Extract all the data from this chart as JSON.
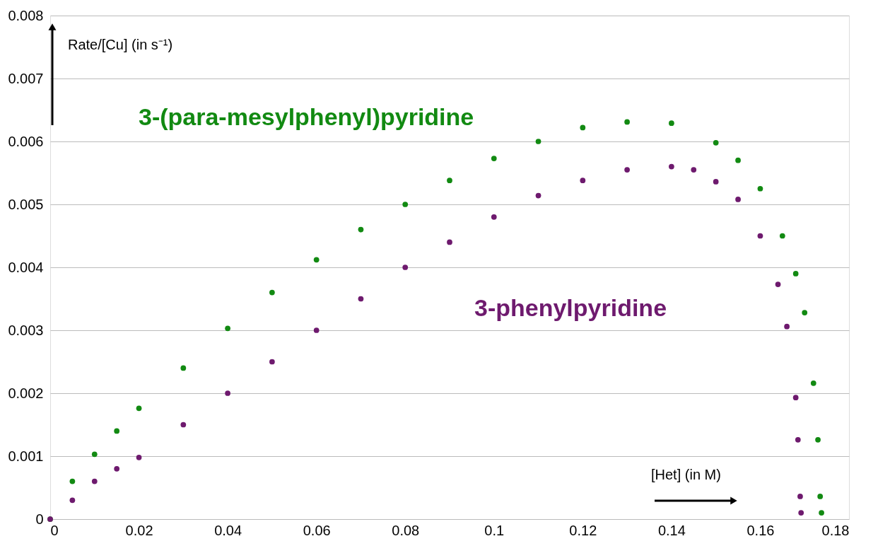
{
  "chart_data": {
    "type": "scatter",
    "xlabel": "[Het] (in M)",
    "ylabel": "Rate/[Cu] (in s⁻¹)",
    "xlim": [
      0,
      0.18
    ],
    "xticks": [
      0,
      0.02,
      0.04,
      0.06,
      0.08,
      0.1,
      0.12,
      0.14,
      0.16,
      0.18
    ],
    "ylim": [
      0,
      0.008
    ],
    "yticks": [
      0,
      0.001,
      0.002,
      0.003,
      0.004,
      0.005,
      0.006,
      0.007,
      0.008
    ],
    "grid": "y",
    "legend": false,
    "marker": "circle",
    "series": [
      {
        "name": "3-(para-mesylphenyl)pyridine",
        "color": "#128a12",
        "x": [
          0,
          0.005,
          0.01,
          0.015,
          0.02,
          0.03,
          0.04,
          0.05,
          0.06,
          0.07,
          0.08,
          0.09,
          0.1,
          0.11,
          0.12,
          0.13,
          0.14,
          0.15,
          0.155,
          0.16,
          0.165,
          0.168,
          0.17,
          0.172,
          0.173,
          0.1735,
          0.1738
        ],
        "values": [
          0,
          0.0006,
          0.00103,
          0.0014,
          0.00176,
          0.0024,
          0.00303,
          0.0036,
          0.00412,
          0.0046,
          0.005,
          0.00538,
          0.00573,
          0.006,
          0.00622,
          0.00631,
          0.00629,
          0.00598,
          0.0057,
          0.00525,
          0.0045,
          0.0039,
          0.00328,
          0.00216,
          0.00126,
          0.00036,
          0.0001
        ]
      },
      {
        "name": "3-phenylpyridine",
        "color": "#6e1a6e",
        "x": [
          0,
          0.005,
          0.01,
          0.015,
          0.02,
          0.03,
          0.04,
          0.05,
          0.06,
          0.07,
          0.08,
          0.09,
          0.1,
          0.11,
          0.12,
          0.13,
          0.14,
          0.145,
          0.15,
          0.155,
          0.16,
          0.164,
          0.166,
          0.168,
          0.1685,
          0.169,
          0.1692
        ],
        "values": [
          0,
          0.0003,
          0.0006,
          0.0008,
          0.00098,
          0.0015,
          0.002,
          0.0025,
          0.003,
          0.0035,
          0.004,
          0.0044,
          0.0048,
          0.00514,
          0.00538,
          0.00555,
          0.0056,
          0.00555,
          0.00536,
          0.00508,
          0.0045,
          0.00373,
          0.00306,
          0.00193,
          0.00126,
          0.00036,
          0.0001
        ]
      }
    ]
  }
}
